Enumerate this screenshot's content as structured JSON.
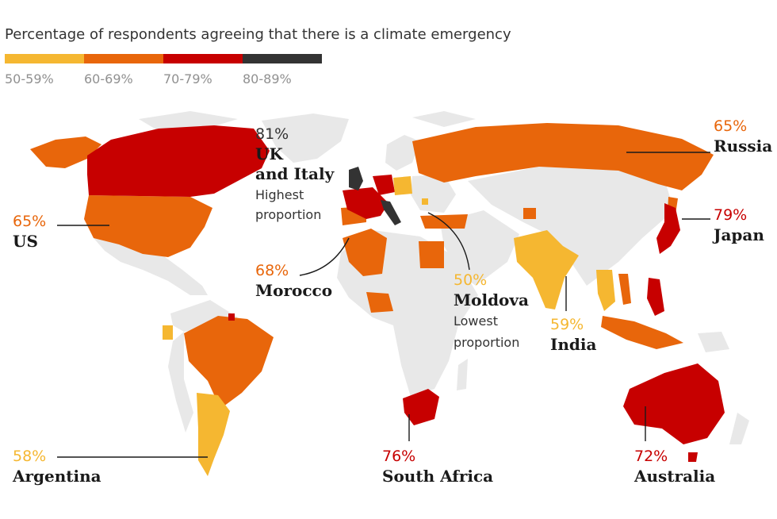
{
  "title": "Percentage of respondents agreeing that there is a climate emergency",
  "colors": {
    "band_50_59": "#f5b731",
    "band_60_69": "#e8660b",
    "band_70_79": "#c70000",
    "band_80_89": "#333333",
    "no_data": "#e8e8e8"
  },
  "legend": [
    {
      "label": "50-59%",
      "color": "#f5b731"
    },
    {
      "label": "60-69%",
      "color": "#e8660b"
    },
    {
      "label": "70-79%",
      "color": "#c70000"
    },
    {
      "label": "80-89%",
      "color": "#333333"
    }
  ],
  "callouts": {
    "uk_italy": {
      "pct": "81%",
      "name_line1": "UK",
      "name_line2": "and Italy",
      "note_line1": "Highest",
      "note_line2": "proportion"
    },
    "russia": {
      "pct": "65%",
      "name": "Russia"
    },
    "us": {
      "pct": "65%",
      "name": "US"
    },
    "japan": {
      "pct": "79%",
      "name": "Japan"
    },
    "morocco": {
      "pct": "68%",
      "name": "Morocco"
    },
    "moldova": {
      "pct": "50%",
      "name": "Moldova",
      "note_line1": "Lowest",
      "note_line2": "proportion"
    },
    "india": {
      "pct": "59%",
      "name": "India"
    },
    "argentina": {
      "pct": "58%",
      "name": "Argentina"
    },
    "south_africa": {
      "pct": "76%",
      "name": "South Africa"
    },
    "australia": {
      "pct": "72%",
      "name": "Australia"
    }
  }
}
